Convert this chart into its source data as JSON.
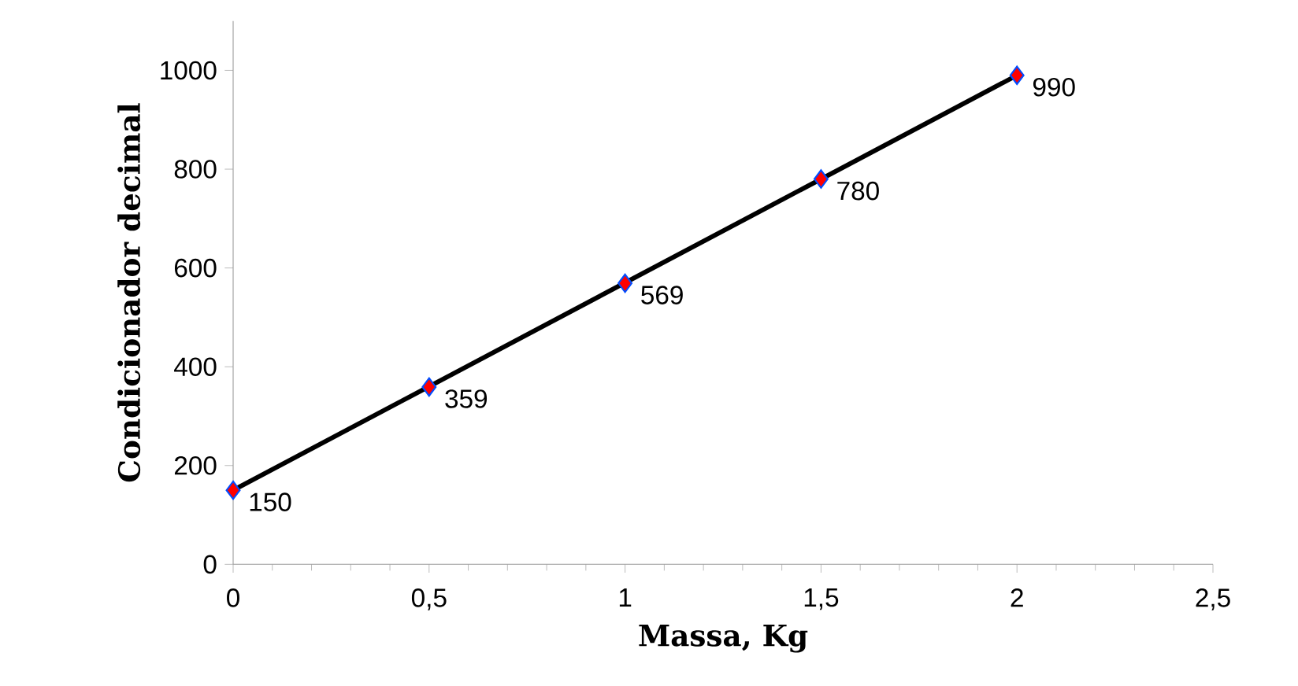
{
  "chart_data": {
    "type": "line",
    "xlabel": "Massa, Kg",
    "ylabel": "Condicionador decimal",
    "xlim": [
      0,
      2.5
    ],
    "ylim": [
      0,
      1100
    ],
    "xticks": [
      0,
      {
        "value": 0.5,
        "label": "0,5"
      },
      1,
      {
        "value": 1.5,
        "label": "1,5"
      },
      2,
      {
        "value": 2.5,
        "label": "2,5"
      }
    ],
    "yticks": [
      0,
      200,
      400,
      600,
      800,
      1000
    ],
    "grid": false,
    "series": [
      {
        "type": "scatter",
        "marker": "diamond",
        "color": "#ff0000",
        "x": [
          0,
          0.5,
          1,
          1.5,
          2
        ],
        "values": [
          150,
          359,
          569,
          780,
          990
        ],
        "value_labels": [
          "150",
          "359",
          "569",
          "780",
          "990"
        ]
      },
      {
        "color": "#000000",
        "line_style": "solid",
        "x": [
          0,
          2
        ],
        "values": [
          150,
          990
        ]
      }
    ]
  }
}
